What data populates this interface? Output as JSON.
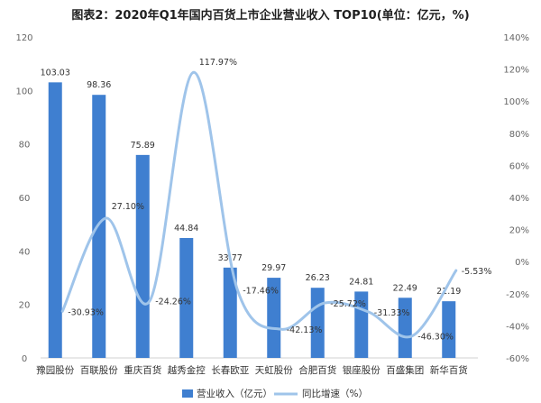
{
  "title": "图表2：2020年Q1年国内百货上市企业营业收入 TOP10(单位：亿元，%)",
  "colors": {
    "bar": "#3F7FD0",
    "line": "#9FC4EA",
    "axis_text": "#666666",
    "grid": "#e6e6e6"
  },
  "chart_data": {
    "type": "bar",
    "title": "图表2：2020年Q1年国内百货上市企业营业收入 TOP10(单位：亿元，%)",
    "categories": [
      "豫园股份",
      "百联股份",
      "重庆百货",
      "越秀金控",
      "长春欧亚",
      "天虹股份",
      "合肥百货",
      "银座股份",
      "百盛集团",
      "新华百货"
    ],
    "series": [
      {
        "name": "营业收入（亿元）",
        "type": "bar",
        "axis": "left",
        "values": [
          103.03,
          98.36,
          75.89,
          44.84,
          33.77,
          29.97,
          26.23,
          24.81,
          22.49,
          21.19
        ],
        "labels": [
          "103.03",
          "98.36",
          "75.89",
          "44.84",
          "33.77",
          "29.97",
          "26.23",
          "24.81",
          "22.49",
          "21.19"
        ]
      },
      {
        "name": "同比增速（%）",
        "type": "line",
        "axis": "right",
        "values": [
          -30.93,
          27.1,
          -24.26,
          117.97,
          -17.46,
          -42.13,
          -25.72,
          -31.33,
          -46.3,
          -5.53
        ],
        "labels": [
          "-30.93%",
          "27.10%",
          "-24.26%",
          "117.97%",
          "-17.46%",
          "-42.13%",
          "-25.72%",
          "-31.33%",
          "-46.30%",
          "-5.53%"
        ]
      }
    ],
    "ylim_left": [
      0,
      120
    ],
    "yticks_left": [
      "0",
      "20",
      "40",
      "60",
      "80",
      "100",
      "120"
    ],
    "ylim_right": [
      -60,
      140
    ],
    "yticks_right": [
      "-60%",
      "-40%",
      "-20%",
      "0%",
      "20%",
      "40%",
      "60%",
      "80%",
      "100%",
      "120%",
      "140%"
    ],
    "grid": false,
    "legend_position": "bottom"
  }
}
